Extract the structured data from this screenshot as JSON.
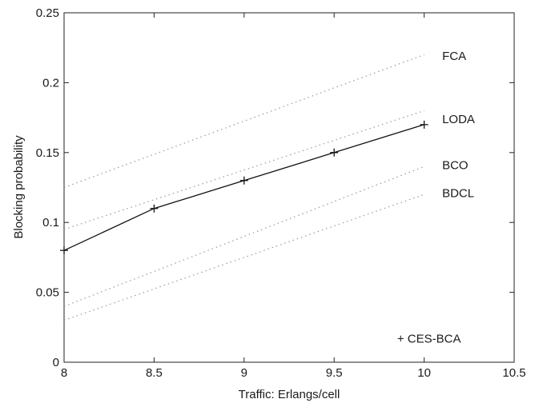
{
  "chart_data": {
    "type": "line",
    "title": "",
    "xlabel": "Traffic: Erlangs/cell",
    "ylabel": "Blocking probability",
    "xlim": [
      8,
      10.5
    ],
    "ylim": [
      0,
      0.25
    ],
    "xticks": [
      8,
      8.5,
      9,
      9.5,
      10,
      10.5
    ],
    "yticks": [
      0,
      0.05,
      0.1,
      0.15,
      0.2,
      0.25
    ],
    "xtick_labels": [
      "8",
      "8.5",
      "9",
      "9.5",
      "10",
      "10.5"
    ],
    "ytick_labels": [
      "0",
      "0.05",
      "0.1",
      "0.15",
      "0.2",
      "0.25"
    ],
    "grid": false,
    "legend": "none",
    "series": [
      {
        "name": "FCA",
        "style": "dotted",
        "color": "#9a9a9a",
        "x": [
          8,
          10
        ],
        "y": [
          0.125,
          0.22
        ]
      },
      {
        "name": "LODA",
        "style": "dotted",
        "color": "#9a9a9a",
        "x": [
          8,
          10
        ],
        "y": [
          0.095,
          0.18
        ]
      },
      {
        "name": "BCO",
        "style": "dotted",
        "color": "#9a9a9a",
        "x": [
          8,
          10
        ],
        "y": [
          0.04,
          0.14
        ]
      },
      {
        "name": "BDCL",
        "style": "dotted",
        "color": "#9a9a9a",
        "x": [
          8,
          10
        ],
        "y": [
          0.03,
          0.12
        ]
      },
      {
        "name": "CES-BCA",
        "style": "solid-marker",
        "color": "#111111",
        "marker": "+",
        "x": [
          8,
          8.5,
          9,
          9.5,
          10
        ],
        "y": [
          0.08,
          0.11,
          0.13,
          0.15,
          0.17
        ]
      }
    ],
    "series_labels": [
      {
        "text": "FCA",
        "x": 10.1,
        "y": 0.219
      },
      {
        "text": "LODA",
        "x": 10.1,
        "y": 0.174
      },
      {
        "text": "BCO",
        "x": 10.1,
        "y": 0.141
      },
      {
        "text": "BDCL",
        "x": 10.1,
        "y": 0.121
      },
      {
        "text": "+ CES-BCA",
        "x": 9.85,
        "y": 0.017
      }
    ]
  }
}
